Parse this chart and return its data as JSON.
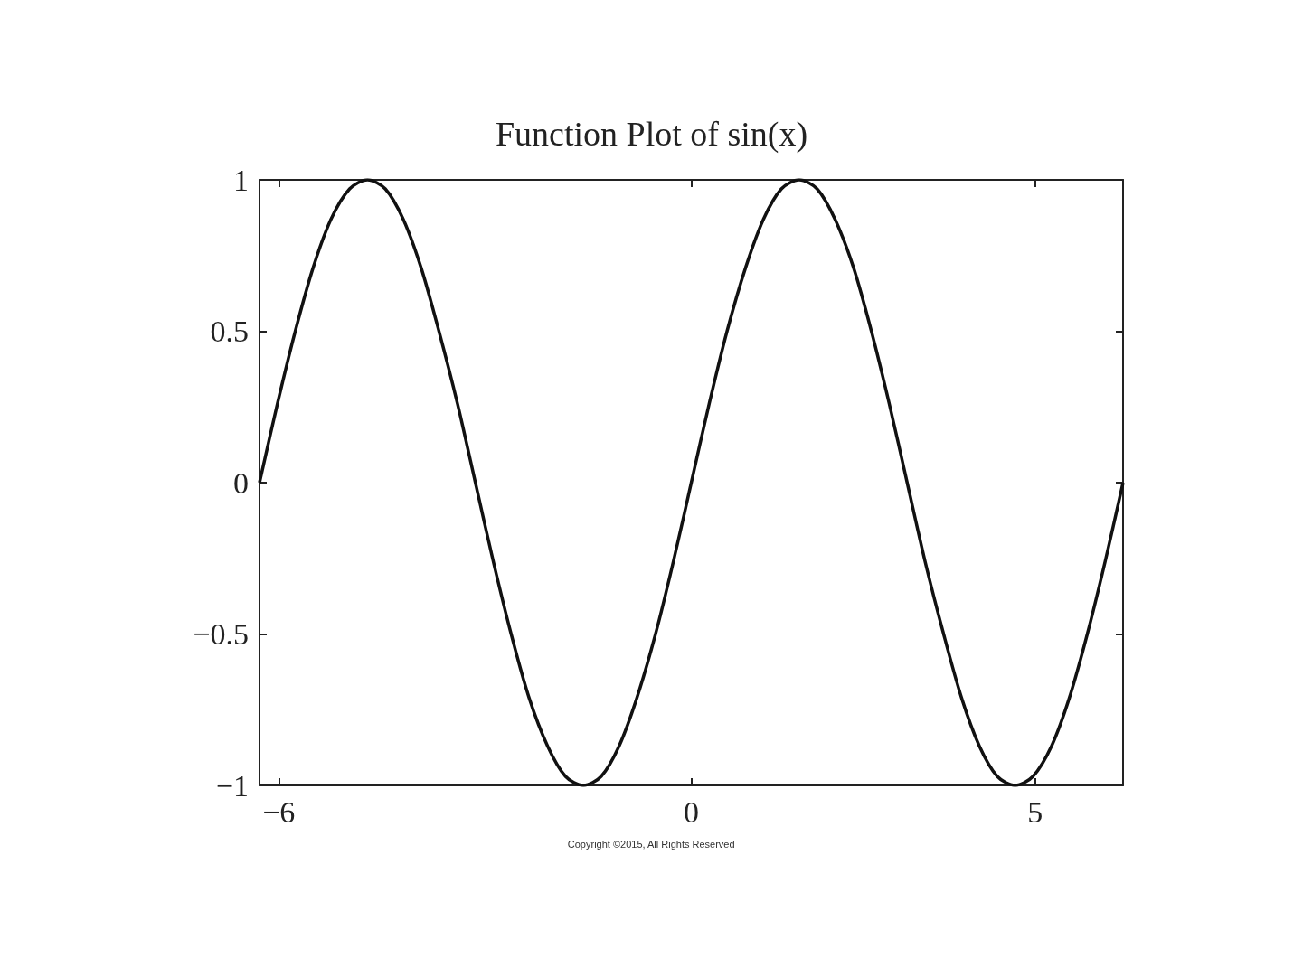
{
  "chart_data": {
    "type": "line",
    "title": "Function Plot of sin(x)",
    "x": [
      -6.28,
      -6.02,
      -5.76,
      -5.5,
      -5.24,
      -4.97,
      -4.71,
      -4.45,
      -4.19,
      -3.93,
      -3.67,
      -3.4,
      -3.14,
      -2.88,
      -2.62,
      -2.36,
      -2.09,
      -1.83,
      -1.57,
      -1.31,
      -1.05,
      -0.79,
      -0.52,
      -0.26,
      0,
      0.26,
      0.52,
      0.79,
      1.05,
      1.31,
      1.57,
      1.83,
      2.09,
      2.36,
      2.62,
      2.88,
      3.14,
      3.4,
      3.67,
      3.93,
      4.19,
      4.45,
      4.71,
      4.97,
      5.24,
      5.5,
      5.76,
      6.02,
      6.28
    ],
    "series": [
      {
        "color": "#111111",
        "values": [
          0,
          0.26,
          0.5,
          0.71,
          0.87,
          0.97,
          1,
          0.97,
          0.87,
          0.71,
          0.5,
          0.26,
          0,
          -0.26,
          -0.5,
          -0.71,
          -0.87,
          -0.97,
          -1,
          -0.97,
          -0.87,
          -0.71,
          -0.5,
          -0.26,
          0,
          0.26,
          0.5,
          0.71,
          0.87,
          0.97,
          1,
          0.97,
          0.87,
          0.71,
          0.5,
          0.26,
          0,
          -0.26,
          -0.5,
          -0.71,
          -0.87,
          -0.97,
          -1,
          -0.97,
          -0.87,
          -0.71,
          -0.5,
          -0.26,
          0
        ]
      }
    ],
    "xlim": [
      -6.28,
      6.28
    ],
    "xticks": [
      {
        "value": -6,
        "label": "−6"
      },
      0,
      5
    ],
    "ylim": [
      -1,
      1
    ],
    "yticks": [
      {
        "value": -1,
        "label": "−1"
      },
      {
        "value": -0.5,
        "label": "−0.5"
      },
      0,
      0.5,
      1
    ],
    "annotations": [
      "Copyright ©2015, All Rights Reserved"
    ],
    "grid": false,
    "marker": "none",
    "line_style": "solid"
  }
}
